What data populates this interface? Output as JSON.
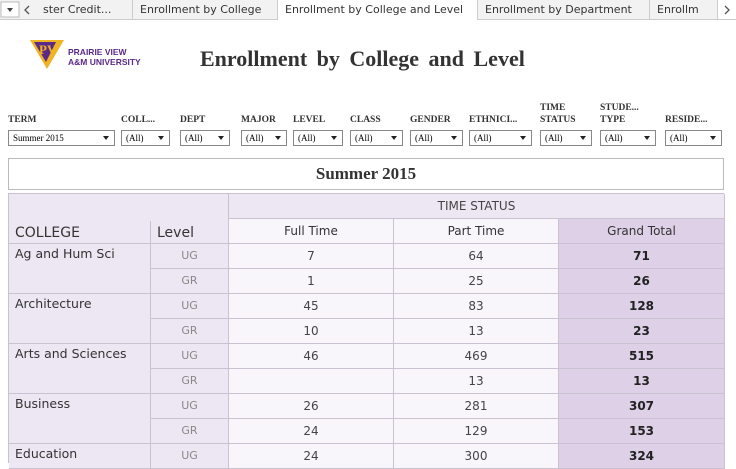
{
  "tabs": [
    "ster Credit...",
    "Enrollment by College",
    "Enrollment by College and Level",
    "Enrollment by Department",
    "Enrollm"
  ],
  "active_tab": 2,
  "logo": {
    "line1": "PRAIRIE VIEW",
    "line2": "A&M UNIVERSITY"
  },
  "title": "Enrollment by College and Level",
  "filters": [
    {
      "label": [
        "TERM"
      ],
      "value": "Summer 2015"
    },
    {
      "label": [
        "COLL..."
      ],
      "value": "(All)"
    },
    {
      "label": [
        "DEPT"
      ],
      "value": "(All)"
    },
    {
      "label": [
        "MAJOR"
      ],
      "value": "(All)"
    },
    {
      "label": [
        "LEVEL"
      ],
      "value": "(All)"
    },
    {
      "label": [
        "CLASS"
      ],
      "value": "(All)"
    },
    {
      "label": [
        "GENDER"
      ],
      "value": "(All)"
    },
    {
      "label": [
        "ETHNICI..."
      ],
      "value": "(All)"
    },
    {
      "label": [
        "TIME",
        "STATUS"
      ],
      "value": "(All)"
    },
    {
      "label": [
        "STUDE...",
        "TYPE"
      ],
      "value": "(All)"
    },
    {
      "label": [
        "RESIDE..."
      ],
      "value": "(All)"
    }
  ],
  "table": {
    "caption": "Summer 2015",
    "group_header": "TIME STATUS",
    "columns": [
      "COLLEGE",
      "Level",
      "Full Time",
      "Part Time",
      "Grand Total"
    ],
    "rows": [
      [
        "Ag and Hum Sci",
        "UG",
        7,
        64,
        71
      ],
      [
        null,
        "GR",
        1,
        25,
        26
      ],
      [
        "Architecture",
        "UG",
        45,
        83,
        128
      ],
      [
        null,
        "GR",
        10,
        13,
        23
      ],
      [
        "Arts and Sciences",
        "UG",
        46,
        469,
        515
      ],
      [
        null,
        "GR",
        null,
        13,
        13
      ],
      [
        "Business",
        "UG",
        26,
        281,
        307
      ],
      [
        null,
        "GR",
        24,
        129,
        153
      ],
      [
        "Education",
        "UG",
        24,
        300,
        324
      ]
    ]
  }
}
